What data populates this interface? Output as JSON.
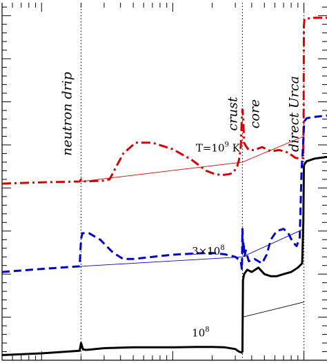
{
  "chart_data": {
    "type": "line",
    "title": "",
    "xlabel": "",
    "ylabel": "",
    "x_scale": "log",
    "xlim": [
      5,
      1500
    ],
    "ylim": [
      -1,
      7.3
    ],
    "markers": [
      {
        "name": "neutron drip",
        "x": 20
      },
      {
        "name": "crust",
        "x": 340
      },
      {
        "name": "core",
        "x": 340
      },
      {
        "name": "direct Urca",
        "x": 1000
      }
    ],
    "curve_labels": [
      {
        "base": "T=10",
        "exp": "9",
        "unit": " K",
        "x": 150,
        "y": 3.85
      },
      {
        "base": "3×10",
        "exp": "8",
        "unit": "",
        "x": 140,
        "y": 1.45
      },
      {
        "base": "10",
        "exp": "8",
        "unit": "",
        "x": 140,
        "y": -0.45
      }
    ],
    "series": [
      {
        "color": "#d40000",
        "style": "dashdot",
        "x": [
          5,
          10,
          19.5,
          20,
          20.5,
          30,
          33,
          42,
          52,
          70,
          100,
          140,
          180,
          210,
          240,
          270,
          290,
          310,
          320,
          330,
          336,
          340,
          345,
          350,
          360,
          380,
          420,
          480,
          560,
          650,
          760,
          860,
          950,
          985,
          995,
          1000,
          1010,
          1050,
          1200,
          1500
        ],
        "y": [
          3.1,
          3.13,
          3.15,
          3.2,
          3.15,
          3.17,
          3.2,
          3.8,
          4.05,
          4.05,
          3.9,
          3.65,
          3.4,
          3.32,
          3.3,
          3.32,
          3.36,
          3.5,
          3.65,
          3.95,
          4.6,
          4.82,
          4.6,
          4.05,
          3.98,
          3.88,
          3.88,
          3.95,
          3.85,
          3.88,
          3.82,
          3.7,
          3.68,
          3.7,
          4.5,
          6.75,
          6.92,
          6.93,
          6.95,
          6.95
        ]
      },
      {
        "color": "#0000cc",
        "style": "dashed",
        "x": [
          5,
          10,
          19.5,
          20,
          20.5,
          23,
          28,
          35,
          42,
          50,
          70,
          100,
          150,
          200,
          250,
          300,
          330,
          337,
          340,
          343,
          347,
          352,
          360,
          380,
          420,
          480,
          520,
          560,
          620,
          700,
          760,
          820,
          880,
          930,
          960,
          990,
          1000,
          1010,
          1050,
          1200,
          1500
        ],
        "y": [
          1.05,
          1.12,
          1.18,
          1.82,
          1.95,
          1.95,
          1.8,
          1.5,
          1.35,
          1.35,
          1.4,
          1.45,
          1.48,
          1.49,
          1.46,
          1.4,
          1.3,
          1.1,
          2.05,
          1.55,
          1.75,
          1.4,
          1.55,
          1.3,
          1.35,
          1.25,
          1.45,
          1.8,
          2.0,
          2.05,
          1.95,
          1.75,
          1.65,
          1.85,
          3.4,
          4.1,
          4.4,
          4.55,
          4.62,
          4.65,
          4.68
        ]
      },
      {
        "color": "#000000",
        "style": "solid",
        "x": [
          5,
          10,
          19.5,
          20,
          20.7,
          22,
          30,
          50,
          100,
          150,
          200,
          250,
          300,
          320,
          335,
          340,
          343,
          350,
          370,
          400,
          450,
          500,
          560,
          620,
          700,
          800,
          900,
          970,
          990,
          1000,
          1010,
          1050,
          1200,
          1500
        ],
        "y": [
          -0.88,
          -0.84,
          -0.78,
          -0.6,
          -0.75,
          -0.76,
          -0.72,
          -0.7,
          -0.7,
          -0.69,
          -0.69,
          -0.7,
          -0.74,
          -0.8,
          -0.82,
          -0.8,
          0.85,
          1.0,
          1.1,
          1.05,
          1.15,
          1.0,
          0.95,
          0.95,
          1.0,
          1.05,
          1.15,
          1.25,
          2.2,
          3.5,
          3.55,
          3.62,
          3.68,
          3.72
        ]
      }
    ],
    "reference_lines": [
      {
        "color": "#d40000",
        "x": [
          20,
          340,
          1000
        ],
        "y": [
          3.15,
          3.6,
          4.2
        ]
      },
      {
        "color": "#0000cc",
        "x": [
          20,
          340,
          1000
        ],
        "y": [
          1.18,
          1.4,
          2.05
        ]
      },
      {
        "color": "#000000",
        "x": [
          340,
          1000
        ],
        "y": [
          0.0,
          0.35
        ]
      }
    ],
    "ytick_spacing": 1,
    "yminor_spacing": 0.2,
    "grid": false,
    "legend": "none"
  }
}
